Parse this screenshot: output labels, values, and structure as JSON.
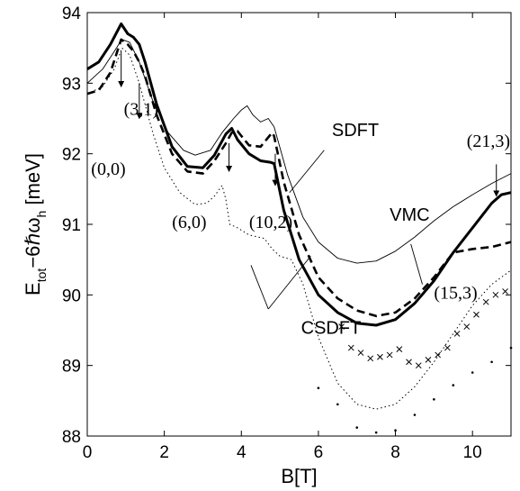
{
  "chart_data": {
    "type": "line",
    "xlabel": "B[T]",
    "ylabel": "E",
    "ylabel_sub_1": "tot",
    "ylabel_mid": "−6",
    "ylabel_hbar": "ℏ",
    "ylabel_omega": "ω",
    "ylabel_sub_2": "h",
    "ylabel_unit": " [meV]",
    "xlim": [
      0,
      11
    ],
    "ylim": [
      88,
      94
    ],
    "xticks": [
      0,
      2,
      4,
      6,
      8,
      10
    ],
    "yticks": [
      88,
      89,
      90,
      91,
      92,
      93,
      94
    ],
    "grid": false,
    "series": [
      {
        "name": "SDFT",
        "style": "thin-solid",
        "x": [
          0,
          0.4,
          0.7,
          0.9,
          1.1,
          1.35,
          1.7,
          2.1,
          2.5,
          2.8,
          3.2,
          3.5,
          3.8,
          4.0,
          4.15,
          4.3,
          4.5,
          4.7,
          4.85,
          5.2,
          5.6,
          6.0,
          6.5,
          7.0,
          7.5,
          8.0,
          8.5,
          9.0,
          9.5,
          10.0,
          10.5,
          11.0
        ],
        "y": [
          93.0,
          93.2,
          93.45,
          93.62,
          93.58,
          93.3,
          92.75,
          92.3,
          92.05,
          91.98,
          92.05,
          92.3,
          92.5,
          92.62,
          92.68,
          92.55,
          92.45,
          92.5,
          92.38,
          91.7,
          91.1,
          90.75,
          90.52,
          90.45,
          90.48,
          90.62,
          90.82,
          91.05,
          91.25,
          91.42,
          91.58,
          91.72
        ]
      },
      {
        "name": "VMC",
        "style": "thick-solid",
        "x": [
          0,
          0.3,
          0.6,
          0.88,
          1.05,
          1.2,
          1.35,
          1.5,
          1.8,
          2.2,
          2.6,
          3.0,
          3.3,
          3.6,
          3.75,
          3.9,
          4.2,
          4.5,
          4.75,
          4.85,
          5.1,
          5.5,
          6.0,
          6.5,
          7.0,
          7.5,
          8.0,
          8.5,
          9.0,
          9.5,
          10.0,
          10.5,
          10.75,
          11.0
        ],
        "y": [
          93.2,
          93.3,
          93.55,
          93.84,
          93.7,
          93.65,
          93.55,
          93.3,
          92.7,
          92.1,
          91.82,
          91.8,
          91.98,
          92.28,
          92.36,
          92.2,
          92.0,
          91.9,
          91.88,
          91.86,
          91.2,
          90.5,
          90.0,
          89.75,
          89.6,
          89.57,
          89.65,
          89.88,
          90.2,
          90.6,
          90.95,
          91.3,
          91.42,
          91.45
        ]
      },
      {
        "name": "CSDFT",
        "style": "dashed",
        "x": [
          0,
          0.3,
          0.6,
          0.88,
          1.05,
          1.2,
          1.35,
          1.5,
          1.8,
          2.2,
          2.6,
          3.0,
          3.3,
          3.6,
          3.75,
          3.9,
          4.2,
          4.5,
          4.8,
          4.85,
          5.1,
          5.5,
          6.0,
          6.5,
          7.0,
          7.5,
          8.0,
          8.5,
          9.0,
          9.5,
          10.0,
          10.5,
          11.0
        ],
        "y": [
          92.85,
          92.9,
          93.15,
          93.62,
          93.55,
          93.45,
          93.3,
          93.1,
          92.55,
          92.0,
          91.75,
          91.72,
          91.9,
          92.15,
          92.3,
          92.32,
          92.12,
          92.1,
          92.3,
          92.25,
          91.6,
          90.85,
          90.25,
          89.95,
          89.78,
          89.7,
          89.75,
          89.95,
          90.25,
          90.6,
          90.65,
          90.68,
          90.75
        ]
      },
      {
        "name": "",
        "style": "dotted",
        "x": [
          0,
          0.4,
          0.7,
          0.9,
          1.1,
          1.35,
          1.7,
          2.0,
          2.4,
          2.8,
          3.1,
          3.3,
          3.5,
          3.6,
          3.7,
          3.9,
          4.2,
          4.6,
          4.8,
          5.0,
          5.3,
          5.6,
          6.0,
          6.5,
          7.0,
          7.5,
          8.0,
          8.5,
          9.0,
          9.5,
          10.0,
          10.5,
          11.0
        ],
        "y": [
          92.85,
          92.95,
          93.2,
          93.5,
          93.4,
          93.0,
          92.3,
          91.8,
          91.45,
          91.28,
          91.3,
          91.4,
          91.55,
          91.35,
          91.0,
          90.95,
          90.85,
          90.8,
          90.65,
          90.55,
          90.5,
          90.15,
          89.4,
          88.75,
          88.45,
          88.38,
          88.45,
          88.7,
          89.05,
          89.45,
          89.85,
          90.15,
          90.35
        ]
      }
    ],
    "marker_series": [
      {
        "name": "",
        "marker": "x",
        "x": [
          6.6,
          6.85,
          7.1,
          7.35,
          7.6,
          7.85,
          8.1,
          8.35,
          8.6,
          8.85,
          9.1,
          9.35,
          9.6,
          9.85,
          10.1,
          10.35,
          10.6,
          10.85
        ],
        "y": [
          89.55,
          89.25,
          89.18,
          89.1,
          89.12,
          89.15,
          89.23,
          89.05,
          89.0,
          89.08,
          89.15,
          89.25,
          89.45,
          89.55,
          89.72,
          89.9,
          90.0,
          90.05
        ]
      },
      {
        "name": "",
        "marker": "dot",
        "x": [
          6.0,
          6.5,
          7.0,
          7.5,
          8.0,
          8.5,
          9.0,
          9.5,
          10.0,
          10.5,
          11.0
        ],
        "y": [
          88.68,
          88.45,
          88.12,
          88.05,
          88.08,
          88.3,
          88.52,
          88.72,
          88.9,
          89.05,
          89.25
        ]
      }
    ],
    "annotations": [
      {
        "text": "(0,0)",
        "x": 0.1,
        "y": 91.7
      },
      {
        "text": "(3,1)",
        "x": 0.95,
        "y": 92.55
      },
      {
        "text": "(6,0)",
        "x": 2.2,
        "y": 90.95
      },
      {
        "text": "(10,2)",
        "x": 4.2,
        "y": 90.95
      },
      {
        "text": "(15,3)",
        "x": 9.0,
        "y": 89.95
      },
      {
        "text": "(21,3)",
        "x": 9.85,
        "y": 92.1
      }
    ],
    "arrows": [
      {
        "x": 0.88,
        "y_from": 93.45,
        "y_to": 92.95
      },
      {
        "x": 1.35,
        "y_from": 93.0,
        "y_to": 92.5
      },
      {
        "x": 3.68,
        "y_from": 92.15,
        "y_to": 91.75
      },
      {
        "x": 4.88,
        "y_from": 92.0,
        "y_to": 91.55
      },
      {
        "x": 10.62,
        "y_from": 91.85,
        "y_to": 91.4
      }
    ],
    "method_labels": [
      {
        "text": "SDFT",
        "x": 6.35,
        "y": 92.25
      },
      {
        "text": "VMC",
        "x": 7.85,
        "y": 91.05
      },
      {
        "text": "CSDFT",
        "x": 5.55,
        "y": 89.45
      }
    ],
    "leader_lines": [
      {
        "from": [
          6.15,
          92.05
        ],
        "to": [
          5.25,
          91.45
        ]
      },
      {
        "from": [
          8.4,
          90.72
        ],
        "to": [
          8.7,
          90.15
        ]
      },
      {
        "from": [
          4.7,
          89.8
        ],
        "to": [
          5.8,
          90.55
        ]
      },
      {
        "from": [
          4.7,
          89.8
        ],
        "to": [
          4.25,
          90.42
        ]
      }
    ]
  }
}
